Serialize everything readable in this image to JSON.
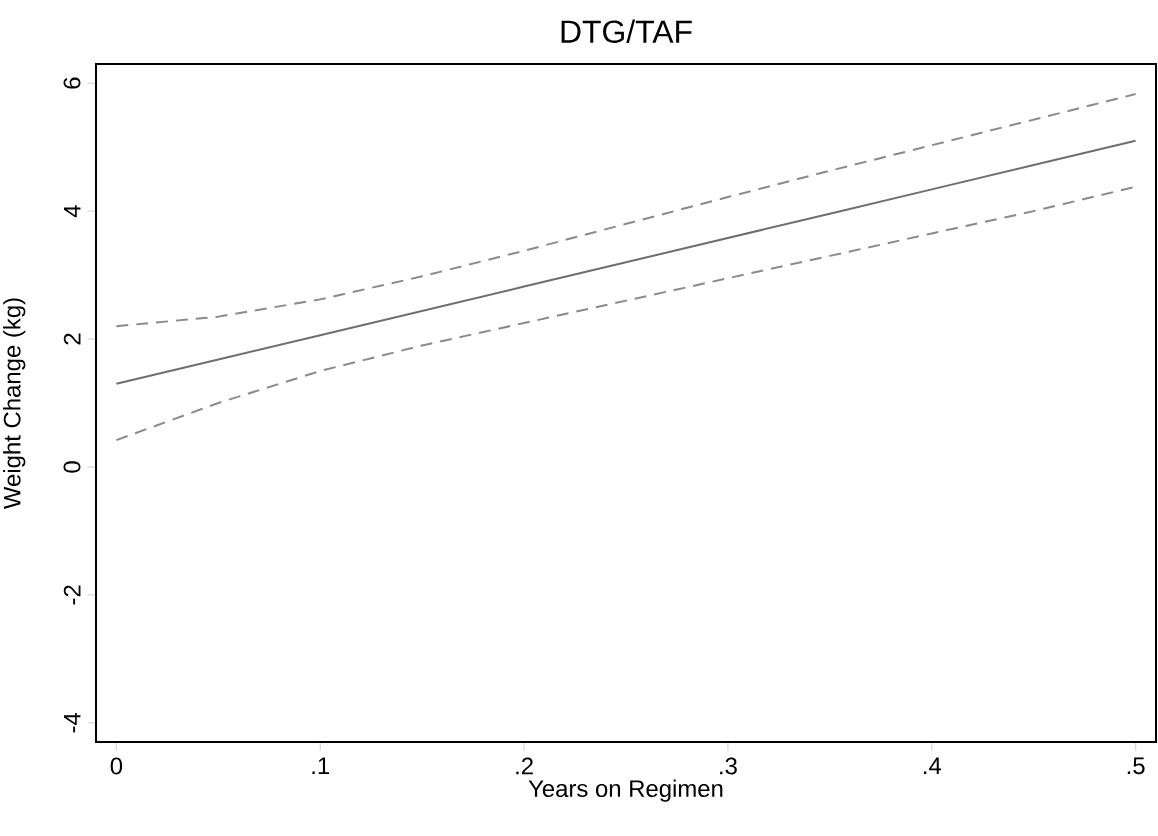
{
  "chart_data": {
    "type": "line",
    "title": "DTG/TAF",
    "xlabel": "Years on Regimen",
    "ylabel": "Weight Change (kg)",
    "x": [
      0,
      0.05,
      0.1,
      0.15,
      0.2,
      0.25,
      0.3,
      0.35,
      0.4,
      0.45,
      0.5
    ],
    "series": [
      {
        "color": "#6e6e6e",
        "line_style": "solid",
        "values": [
          1.3,
          1.68,
          2.06,
          2.44,
          2.82,
          3.2,
          3.58,
          3.96,
          4.34,
          4.72,
          5.1
        ]
      },
      {
        "color": "#8a8a8a",
        "line_style": "dashed",
        "values": [
          2.2,
          2.35,
          2.62,
          2.98,
          3.38,
          3.8,
          4.22,
          4.63,
          5.03,
          5.43,
          5.83
        ]
      },
      {
        "color": "#8a8a8a",
        "line_style": "dashed",
        "values": [
          0.42,
          1.0,
          1.5,
          1.9,
          2.25,
          2.6,
          2.95,
          3.3,
          3.65,
          4.0,
          4.38
        ]
      }
    ],
    "xlim": [
      -0.01,
      0.51
    ],
    "ylim": [
      -4.3,
      6.3
    ],
    "xticks": [
      0,
      {
        "value": 0.1,
        "label": ".1"
      },
      {
        "value": 0.2,
        "label": ".2"
      },
      {
        "value": 0.3,
        "label": ".3"
      },
      {
        "value": 0.4,
        "label": ".4"
      },
      {
        "value": 0.5,
        "label": ".5"
      }
    ],
    "yticks": [
      -4,
      -2,
      0,
      2,
      4,
      6
    ],
    "grid": false,
    "marker": "none"
  }
}
